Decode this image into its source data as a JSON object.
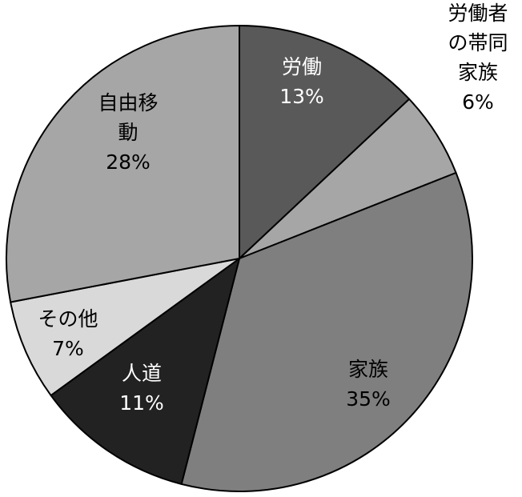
{
  "chart_data": {
    "type": "pie",
    "title": "",
    "start": "12 o'clock",
    "direction": "clockwise",
    "slices": [
      {
        "label_lines": [
          "労働"
        ],
        "percent_label": "13%",
        "value": 13,
        "color": "#595959",
        "label_color": "#ffffff",
        "label_position": "inside"
      },
      {
        "label_lines": [
          "労働者",
          "の帯同",
          "家族"
        ],
        "percent_label": "6%",
        "value": 6,
        "color": "#a6a6a6",
        "label_color": "#000000",
        "label_position": "outside"
      },
      {
        "label_lines": [
          "家族"
        ],
        "percent_label": "35%",
        "value": 35,
        "color": "#7f7f7f",
        "label_color": "#000000",
        "label_position": "inside"
      },
      {
        "label_lines": [
          "人道"
        ],
        "percent_label": "11%",
        "value": 11,
        "color": "#222222",
        "label_color": "#ffffff",
        "label_position": "inside"
      },
      {
        "label_lines": [
          "その他"
        ],
        "percent_label": "7%",
        "value": 7,
        "color": "#d9d9d9",
        "label_color": "#000000",
        "label_position": "inside"
      },
      {
        "label_lines": [
          "自由移",
          "動"
        ],
        "percent_label": "28%",
        "value": 28,
        "color": "#a6a6a6",
        "label_color": "#000000",
        "label_position": "inside"
      }
    ],
    "legend": "none",
    "outline_color": "#000000"
  }
}
